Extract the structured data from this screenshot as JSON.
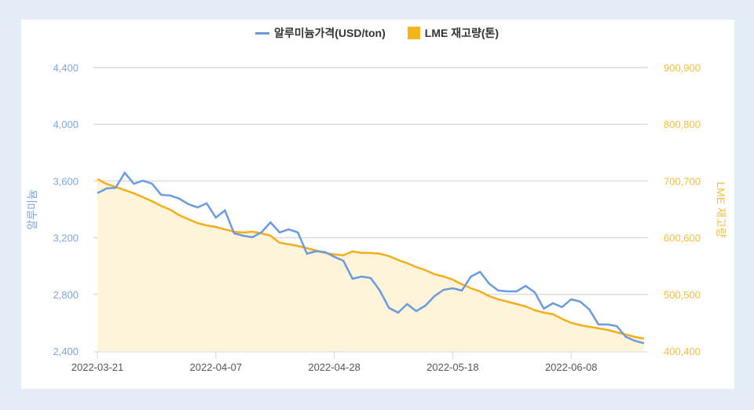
{
  "chart_data": {
    "type": "line",
    "title": "",
    "legend": {
      "placement": "top",
      "entries": [
        "알루미늄가격(USD/ton)",
        "LME 재고량(톤)"
      ]
    },
    "ylabel_left": "알루미늄",
    "ylabel_right": "LME 재고량",
    "ylim_left": [
      2400,
      4400
    ],
    "yticks_left": [
      "2,400",
      "2,800",
      "3,200",
      "3,600",
      "4,000",
      "4,400"
    ],
    "ylim_right": [
      400400,
      900900
    ],
    "yticks_right": [
      "400,400",
      "500,500",
      "600,600",
      "700,700",
      "800,800",
      "900,900"
    ],
    "grid": true,
    "x_ticks": [
      {
        "index": 0,
        "label": "2022-03-21"
      },
      {
        "index": 13,
        "label": "2022-04-07"
      },
      {
        "index": 26,
        "label": "2022-04-28"
      },
      {
        "index": 39,
        "label": "2022-05-18"
      },
      {
        "index": 52,
        "label": "2022-06-08"
      }
    ],
    "series": [
      {
        "name": "알루미늄가격(USD/ton)",
        "axis": "left",
        "style": "line",
        "color": "#6a9ae0",
        "values": [
          3514,
          3547,
          3552,
          3658,
          3580,
          3602,
          3580,
          3502,
          3497,
          3475,
          3436,
          3414,
          3442,
          3342,
          3392,
          3231,
          3214,
          3203,
          3237,
          3308,
          3237,
          3259,
          3237,
          3087,
          3104,
          3098,
          3065,
          3037,
          2910,
          2926,
          2915,
          2827,
          2705,
          2671,
          2732,
          2682,
          2721,
          2788,
          2832,
          2843,
          2827,
          2926,
          2959,
          2876,
          2827,
          2821,
          2821,
          2860,
          2815,
          2699,
          2738,
          2710,
          2765,
          2749,
          2693,
          2588,
          2588,
          2577,
          2500,
          2472,
          2455
        ]
      },
      {
        "name": "LME 재고량(톤)",
        "axis": "right",
        "style": "area",
        "color": "#f4ae1a",
        "fill": "#fdf4da",
        "values": [
          704000,
          695600,
          690100,
          684500,
          679000,
          672100,
          665100,
          656800,
          649900,
          640200,
          633200,
          626300,
          622200,
          619400,
          615200,
          611100,
          609700,
          611100,
          608300,
          604100,
          591700,
          588900,
          586100,
          582000,
          577800,
          573700,
          570900,
          569500,
          576400,
          573700,
          573700,
          572300,
          568100,
          561200,
          555600,
          548700,
          543200,
          536200,
          532100,
          526500,
          518200,
          511300,
          505700,
          497400,
          491900,
          487700,
          483600,
          479400,
          472500,
          468300,
          465500,
          457200,
          450300,
          446100,
          443400,
          440600,
          437800,
          433700,
          429500,
          425300,
          422600
        ]
      }
    ]
  }
}
